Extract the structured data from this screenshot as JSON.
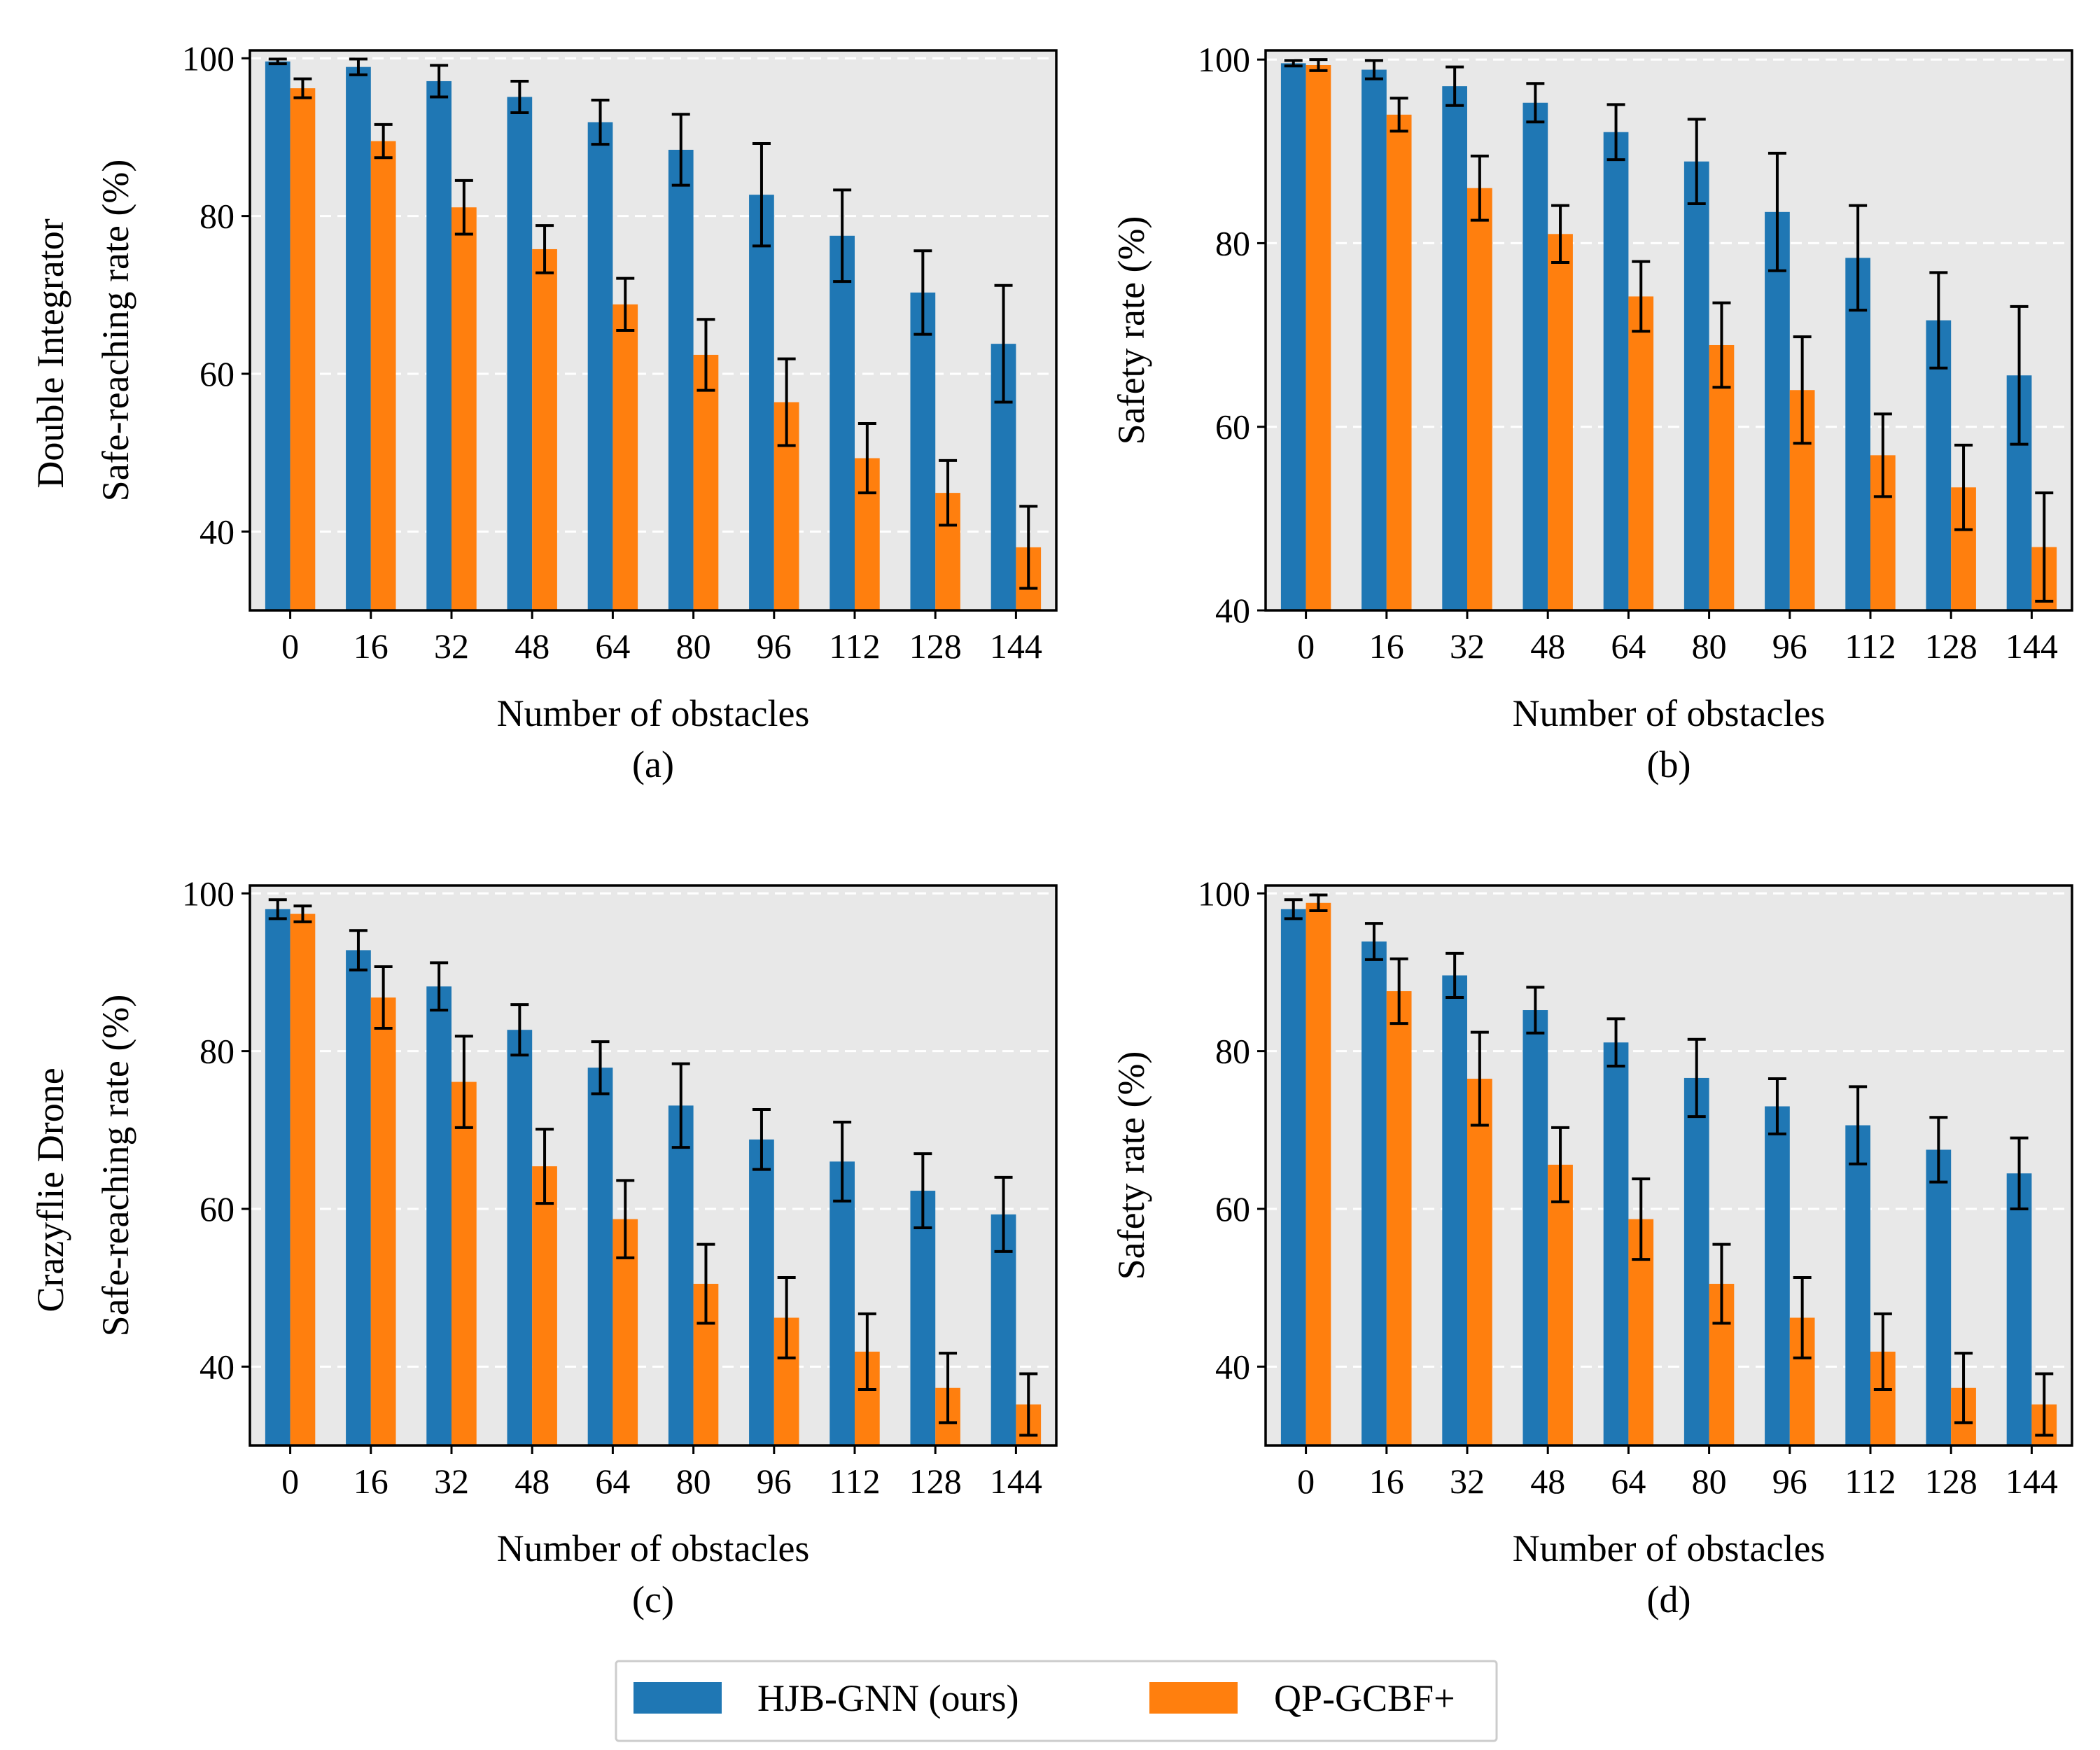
{
  "colors": {
    "series_0": "#1f77b4",
    "series_1": "#ff7f0e",
    "panel_bg": "#e8e8e8",
    "grid": "#ffffff",
    "error_bar": "#000000"
  },
  "row_titles": [
    "Double Integrator",
    "Crazyflie Drone"
  ],
  "legend": [
    "HJB-GNN (ours)",
    "QP-GCBF+"
  ],
  "chart_data": [
    {
      "type": "bar",
      "panel": "(a)",
      "row_title": "Double Integrator",
      "xlabel": "Number of obstacles",
      "ylabel": "Safe-reaching rate (%)",
      "ylim": [
        30,
        101
      ],
      "yticks": [
        40,
        60,
        80,
        100
      ],
      "grid": true,
      "categories": [
        "0",
        "16",
        "32",
        "48",
        "64",
        "80",
        "96",
        "112",
        "128",
        "144"
      ],
      "series": [
        {
          "name": "HJB-GNN (ours)",
          "values": [
            99.6,
            98.9,
            97.1,
            95.1,
            91.9,
            88.4,
            82.7,
            77.5,
            70.3,
            63.8
          ],
          "errors": [
            0.3,
            1.0,
            2.0,
            2.0,
            2.8,
            4.5,
            6.5,
            5.8,
            5.3,
            7.4
          ]
        },
        {
          "name": "QP-GCBF+",
          "values": [
            96.2,
            89.5,
            81.1,
            75.8,
            68.8,
            62.4,
            56.4,
            49.3,
            44.9,
            38.0
          ],
          "errors": [
            1.2,
            2.1,
            3.4,
            3.0,
            3.3,
            4.5,
            5.5,
            4.4,
            4.1,
            5.2
          ]
        }
      ]
    },
    {
      "type": "bar",
      "panel": "(b)",
      "xlabel": "Number of obstacles",
      "ylabel": "Safety rate (%)",
      "ylim": [
        40,
        101
      ],
      "yticks": [
        40,
        60,
        80,
        100
      ],
      "grid": true,
      "categories": [
        "0",
        "16",
        "32",
        "48",
        "64",
        "80",
        "96",
        "112",
        "128",
        "144"
      ],
      "series": [
        {
          "name": "HJB-GNN (ours)",
          "values": [
            99.6,
            98.9,
            97.1,
            95.3,
            92.1,
            88.9,
            83.4,
            78.4,
            71.6,
            65.6
          ],
          "errors": [
            0.3,
            1.0,
            2.1,
            2.1,
            3.0,
            4.6,
            6.4,
            5.7,
            5.2,
            7.5
          ]
        },
        {
          "name": "QP-GCBF+",
          "values": [
            99.4,
            94.0,
            86.0,
            81.0,
            74.2,
            68.9,
            64.0,
            56.9,
            53.4,
            46.9
          ],
          "errors": [
            0.6,
            1.8,
            3.5,
            3.1,
            3.8,
            4.6,
            5.8,
            4.5,
            4.6,
            5.9
          ]
        }
      ]
    },
    {
      "type": "bar",
      "panel": "(c)",
      "row_title": "Crazyflie Drone",
      "xlabel": "Number of obstacles",
      "ylabel": "Safe-reaching rate (%)",
      "ylim": [
        30,
        101
      ],
      "yticks": [
        40,
        60,
        80,
        100
      ],
      "grid": true,
      "categories": [
        "0",
        "16",
        "32",
        "48",
        "64",
        "80",
        "96",
        "112",
        "128",
        "144"
      ],
      "series": [
        {
          "name": "HJB-GNN (ours)",
          "values": [
            98.0,
            92.8,
            88.2,
            82.7,
            77.9,
            73.1,
            68.8,
            66.0,
            62.3,
            59.3
          ],
          "errors": [
            1.2,
            2.5,
            3.0,
            3.2,
            3.3,
            5.3,
            3.8,
            5.0,
            4.7,
            4.7
          ]
        },
        {
          "name": "QP-GCBF+",
          "values": [
            97.4,
            86.8,
            76.1,
            65.4,
            58.7,
            50.5,
            46.2,
            41.9,
            37.3,
            35.2
          ],
          "errors": [
            1.0,
            3.9,
            5.8,
            4.7,
            4.9,
            5.0,
            5.1,
            4.8,
            4.4,
            3.9
          ]
        }
      ]
    },
    {
      "type": "bar",
      "panel": "(d)",
      "xlabel": "Number of obstacles",
      "ylabel": "Safety rate (%)",
      "ylim": [
        30,
        101
      ],
      "yticks": [
        40,
        60,
        80,
        100
      ],
      "grid": true,
      "categories": [
        "0",
        "16",
        "32",
        "48",
        "64",
        "80",
        "96",
        "112",
        "128",
        "144"
      ],
      "series": [
        {
          "name": "HJB-GNN (ours)",
          "values": [
            98.0,
            93.9,
            89.6,
            85.2,
            81.1,
            76.6,
            73.0,
            70.6,
            67.5,
            64.5
          ],
          "errors": [
            1.2,
            2.3,
            2.8,
            2.9,
            3.0,
            4.9,
            3.5,
            4.9,
            4.1,
            4.5
          ]
        },
        {
          "name": "QP-GCBF+",
          "values": [
            98.8,
            87.6,
            76.5,
            65.6,
            58.7,
            50.5,
            46.2,
            41.9,
            37.3,
            35.2
          ],
          "errors": [
            1.0,
            4.1,
            5.9,
            4.7,
            5.1,
            5.0,
            5.1,
            4.8,
            4.4,
            3.9
          ]
        }
      ]
    }
  ]
}
